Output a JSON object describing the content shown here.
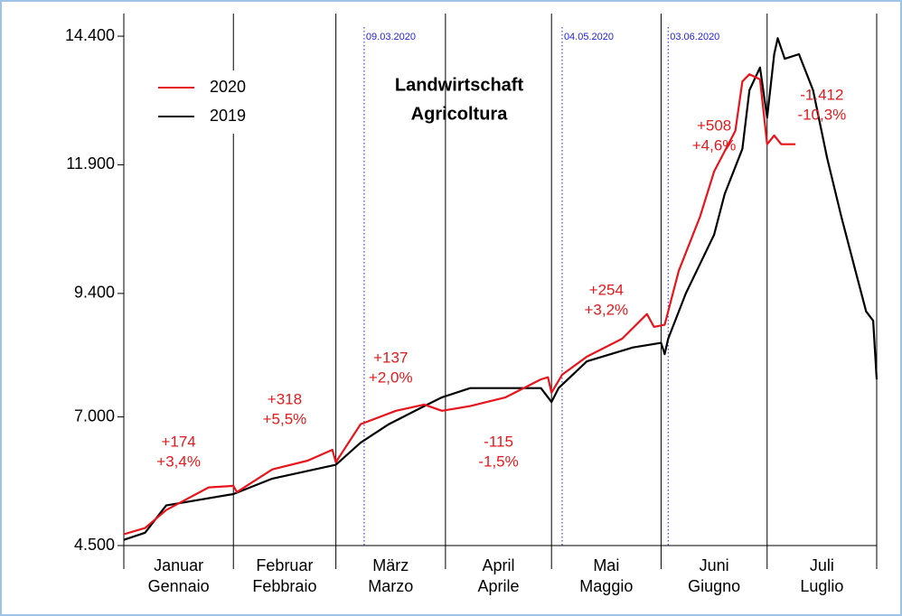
{
  "chart_data": {
    "type": "line",
    "title": [
      "Landwirtschaft",
      "Agricoltura"
    ],
    "categories": [
      [
        "Januar",
        "Gennaio"
      ],
      [
        "Februar",
        "Febbraio"
      ],
      [
        "März",
        "Marzo"
      ],
      [
        "April",
        "Aprile"
      ],
      [
        "Mai",
        "Maggio"
      ],
      [
        "Juni",
        "Giugno"
      ],
      [
        "Juli",
        "Luglio"
      ]
    ],
    "xlim": [
      0,
      213
    ],
    "xticks": [
      0,
      31,
      60,
      91,
      121,
      152,
      182,
      213
    ],
    "ylim": [
      4500,
      14840
    ],
    "yticks": [
      {
        "value": 4500,
        "label": "4.500"
      },
      {
        "value": 7000,
        "label": "7.000"
      },
      {
        "value": 9400,
        "label": "9.400"
      },
      {
        "value": 11900,
        "label": "11.900"
      },
      {
        "value": 14400,
        "label": "14.400"
      }
    ],
    "legend": "top-left",
    "markers": [
      {
        "x": 68,
        "label": "09.03.2020"
      },
      {
        "x": 124,
        "label": "04.05.2020"
      },
      {
        "x": 154,
        "label": "03.06.2020"
      }
    ],
    "annotations": [
      [
        "+174",
        "+3,4%"
      ],
      [
        "+318",
        "+5,5%"
      ],
      [
        "+137",
        "+2,0%"
      ],
      [
        "-115",
        "-1,5%"
      ],
      [
        "+254",
        "+3,2%"
      ],
      [
        "+508",
        "+4,6%"
      ],
      [
        "-1.412",
        "-10,3%"
      ]
    ],
    "annotation_color": "#e31a1c",
    "series": [
      {
        "name": "2020",
        "color": "#e8141c",
        "x": [
          0,
          6,
          12,
          24,
          31,
          32,
          42,
          52,
          59,
          60,
          67,
          77,
          85,
          90,
          98,
          108,
          118,
          120,
          121,
          124,
          131,
          141,
          148,
          150,
          153,
          157,
          163,
          167,
          173,
          175,
          177,
          180,
          182,
          184,
          186,
          190
        ],
        "values": [
          4720,
          4840,
          5190,
          5630,
          5660,
          5540,
          5980,
          6150,
          6360,
          6120,
          6860,
          7120,
          7240,
          7120,
          7210,
          7380,
          7730,
          7770,
          7470,
          7820,
          8170,
          8520,
          9000,
          8750,
          8790,
          9840,
          10890,
          11770,
          12560,
          13520,
          13660,
          13560,
          12300,
          12470,
          12300,
          12300
        ]
      },
      {
        "name": "2019",
        "color": "#000000",
        "x": [
          0,
          6,
          12,
          31,
          42,
          60,
          67,
          75,
          85,
          90,
          98,
          108,
          118,
          121,
          123,
          131,
          144,
          152,
          153,
          154,
          159,
          167,
          170,
          175,
          177,
          180,
          182,
          184,
          185,
          187,
          191,
          195,
          199,
          203,
          207,
          210,
          212,
          213
        ],
        "values": [
          4610,
          4750,
          5280,
          5500,
          5800,
          6070,
          6500,
          6860,
          7210,
          7380,
          7560,
          7560,
          7560,
          7290,
          7560,
          8080,
          8350,
          8440,
          8220,
          8520,
          9400,
          10540,
          11330,
          12210,
          13350,
          13790,
          12820,
          14050,
          14360,
          13960,
          14050,
          13350,
          12030,
          10890,
          9840,
          9050,
          8870,
          7730
        ]
      }
    ]
  }
}
